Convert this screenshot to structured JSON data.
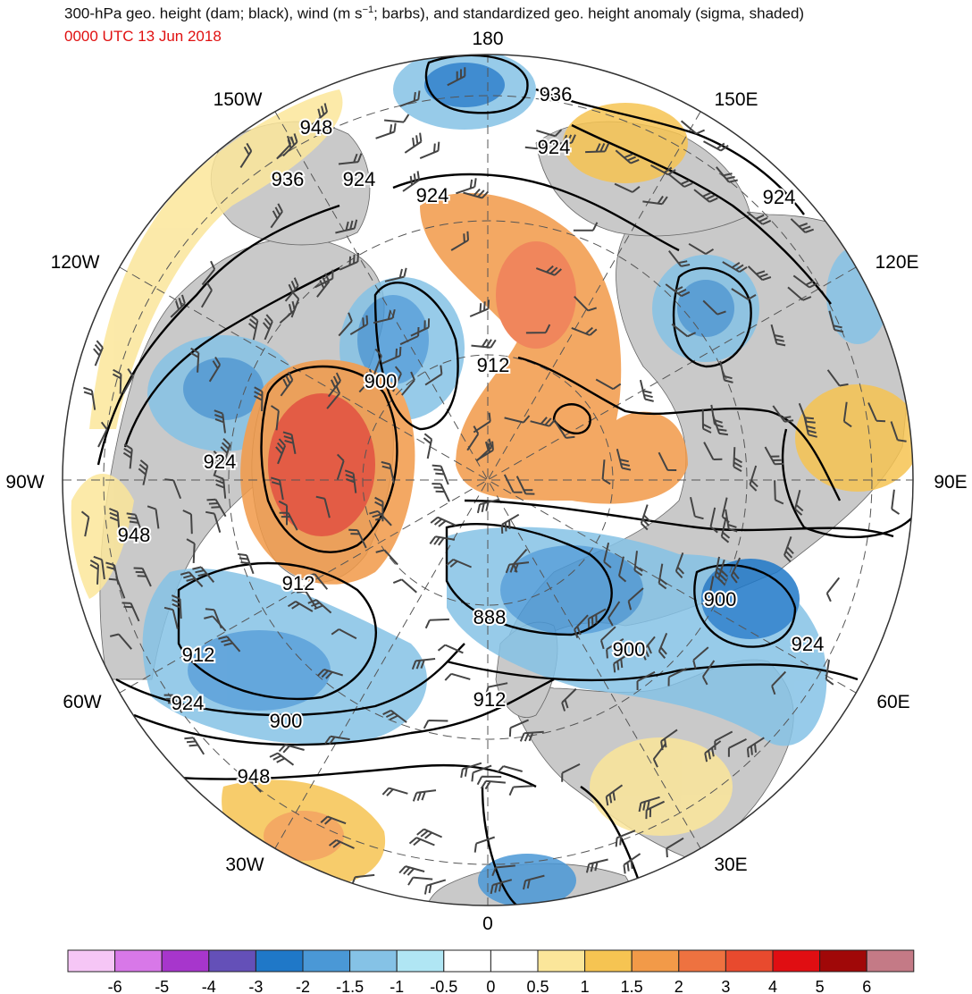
{
  "title": {
    "pre": "300-hPa geo. height (dam; black), wind (m s",
    "sup": "−1",
    "post": "; barbs), and standardized geo. height anomaly (sigma, shaded)"
  },
  "subtitle": "0000 UTC 13 Jun 2018",
  "map": {
    "projection": "north-polar-stereographic",
    "longitude_labels": [
      "180",
      "150E",
      "120E",
      "90E",
      "60E",
      "30E",
      "0",
      "30W",
      "60W",
      "90W",
      "120W",
      "150W"
    ],
    "contour_labels": [
      "936",
      "924",
      "924",
      "948",
      "936",
      "924",
      "924",
      "912",
      "900",
      "924",
      "948",
      "912",
      "888",
      "900",
      "900",
      "924",
      "912",
      "924",
      "900",
      "912",
      "948"
    ],
    "colors": {
      "land": "#c9c9c9",
      "contour": "#000000",
      "barbs": "#444444",
      "graticule": "#555555"
    }
  },
  "colorbar": {
    "labels": [
      "-6",
      "-5",
      "-4",
      "-3",
      "-2",
      "-1.5",
      "-1",
      "-0.5",
      "0",
      "0.5",
      "1",
      "1.5",
      "2",
      "3",
      "4",
      "5",
      "6"
    ],
    "colors": [
      "#f6c6f6",
      "#d878e8",
      "#a736cc",
      "#6450b8",
      "#1f78c8",
      "#4a98d6",
      "#85c2e6",
      "#b0e6f4",
      "#ffffff",
      "#ffffff",
      "#fbe69a",
      "#f6c452",
      "#f29a48",
      "#ee7240",
      "#e84a2e",
      "#e00e12",
      "#a00808",
      "#c47a86"
    ]
  }
}
